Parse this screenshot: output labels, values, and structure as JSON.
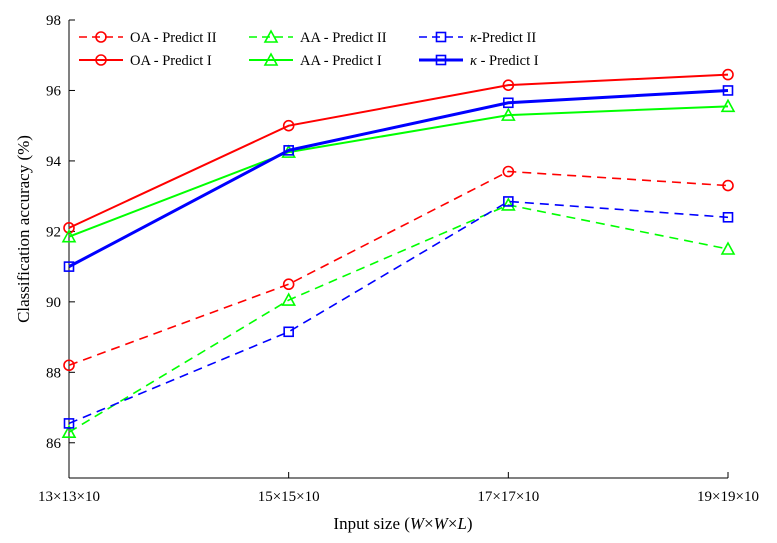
{
  "chart_data": {
    "type": "line",
    "xlabel_parts": [
      "Input size (",
      "W",
      "×",
      "W",
      "×",
      "L",
      ")"
    ],
    "ylabel": "Classification accuracy (%)",
    "categories": [
      "13×13×10",
      "15×15×10",
      "17×17×10",
      "19×19×10"
    ],
    "ylim": [
      85,
      98
    ],
    "yticks": [
      86,
      88,
      90,
      92,
      94,
      96,
      98
    ],
    "grid": false,
    "legend_position": "top-left",
    "legend_columns": 3,
    "series": [
      {
        "name": "OA - Predict II",
        "values": [
          88.2,
          90.5,
          93.7,
          93.3
        ],
        "color": "#ff0000",
        "dash": "dashed",
        "marker": "circle",
        "width": 1.6
      },
      {
        "name": "AA - Predict II",
        "values": [
          86.3,
          90.05,
          92.75,
          91.5
        ],
        "color": "#00ff00",
        "dash": "dashed",
        "marker": "triangle",
        "width": 1.6
      },
      {
        "name_parts": [
          "κ",
          "-Predict II"
        ],
        "values": [
          86.55,
          89.15,
          92.85,
          92.4
        ],
        "color": "#0000ff",
        "dash": "dashed",
        "marker": "square",
        "width": 1.6
      },
      {
        "name": "OA - Predict I",
        "values": [
          92.1,
          95.0,
          96.15,
          96.45
        ],
        "color": "#ff0000",
        "dash": "solid",
        "marker": "circle",
        "width": 2
      },
      {
        "name": "AA - Predict I",
        "values": [
          91.85,
          94.25,
          95.3,
          95.55
        ],
        "color": "#00ff00",
        "dash": "solid",
        "marker": "triangle",
        "width": 2
      },
      {
        "name_parts": [
          "κ",
          " - Predict I"
        ],
        "values": [
          91.0,
          94.3,
          95.65,
          96.0
        ],
        "color": "#0000ff",
        "dash": "solid",
        "marker": "square",
        "width": 3
      }
    ]
  }
}
